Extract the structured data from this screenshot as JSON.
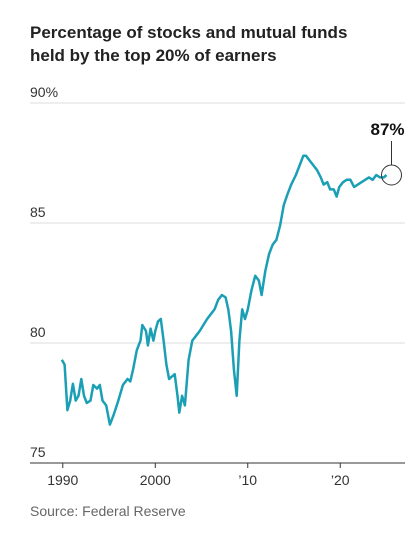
{
  "chart_data": {
    "type": "line",
    "title": "Percentage of stocks and mutual funds held by the top 20% of earners",
    "source": "Source: Federal Reserve",
    "annotation": "87%",
    "color": "#1a9fb5",
    "x": [
      1989.9,
      1990.2,
      1990.5,
      1990.8,
      1991.1,
      1991.4,
      1991.7,
      1992,
      1992.3,
      1992.6,
      1993,
      1993.3,
      1993.7,
      1994,
      1994.3,
      1994.7,
      1995.1,
      1995.5,
      1996,
      1996.5,
      1997,
      1997.3,
      1997.6,
      1998,
      1998.4,
      1998.6,
      1999,
      1999.2,
      1999.5,
      1999.8,
      2000,
      2000.3,
      2000.6,
      2000.9,
      2001.2,
      2001.5,
      2001.8,
      2002.1,
      2002.4,
      2002.6,
      2002.9,
      2003.2,
      2003.6,
      2004,
      2004.4,
      2004.8,
      2005.2,
      2005.6,
      2006,
      2006.4,
      2006.8,
      2007.2,
      2007.6,
      2007.9,
      2008.2,
      2008.5,
      2008.8,
      2009.1,
      2009.4,
      2009.7,
      2010,
      2010.4,
      2010.8,
      2011.2,
      2011.5,
      2011.9,
      2012.3,
      2012.7,
      2013.1,
      2013.5,
      2013.9,
      2014.3,
      2014.7,
      2015.2,
      2015.6,
      2016,
      2016.3,
      2016.7,
      2017.1,
      2017.5,
      2017.9,
      2018.2,
      2018.6,
      2018.9,
      2019.3,
      2019.6,
      2019.9,
      2020.3,
      2020.7,
      2021.1,
      2021.5,
      2021.9,
      2022.3,
      2022.7,
      2023.1,
      2023.5,
      2023.9,
      2024.3,
      2024.7,
      2025
    ],
    "values": [
      79.3,
      79.1,
      77.2,
      77.6,
      78.3,
      77.6,
      77.8,
      78.5,
      77.8,
      77.5,
      77.6,
      78.25,
      78.1,
      78.25,
      77.6,
      77.4,
      76.6,
      77.0,
      77.6,
      78.25,
      78.5,
      78.4,
      78.9,
      79.7,
      80.1,
      80.75,
      80.5,
      79.9,
      80.6,
      80.1,
      80.5,
      80.9,
      81.0,
      80.1,
      79.1,
      78.5,
      78.6,
      78.7,
      77.8,
      77.1,
      77.8,
      77.4,
      79.3,
      80.1,
      80.3,
      80.5,
      80.75,
      81.0,
      81.2,
      81.4,
      81.8,
      82.0,
      81.9,
      81.4,
      80.5,
      78.9,
      77.8,
      80.1,
      81.4,
      81.0,
      81.4,
      82.2,
      82.8,
      82.6,
      82.0,
      83.0,
      83.7,
      84.1,
      84.3,
      84.9,
      85.75,
      86.2,
      86.6,
      87.0,
      87.4,
      87.8,
      87.8,
      87.6,
      87.4,
      87.2,
      86.9,
      86.6,
      86.7,
      86.4,
      86.4,
      86.1,
      86.5,
      86.7,
      86.8,
      86.8,
      86.5,
      86.6,
      86.7,
      86.8,
      86.9,
      86.8,
      87.0,
      86.9,
      86.9,
      87.0
    ],
    "xlim": [
      1989.7,
      2027
    ],
    "xticks": [
      1990,
      2000,
      {
        "value": 2010,
        "label": "’10"
      },
      {
        "value": 2020,
        "label": "’20"
      }
    ],
    "ylim": [
      75,
      90
    ],
    "yticks": [
      75,
      80,
      85,
      {
        "value": 90,
        "label": "90%"
      }
    ],
    "grid": true
  }
}
